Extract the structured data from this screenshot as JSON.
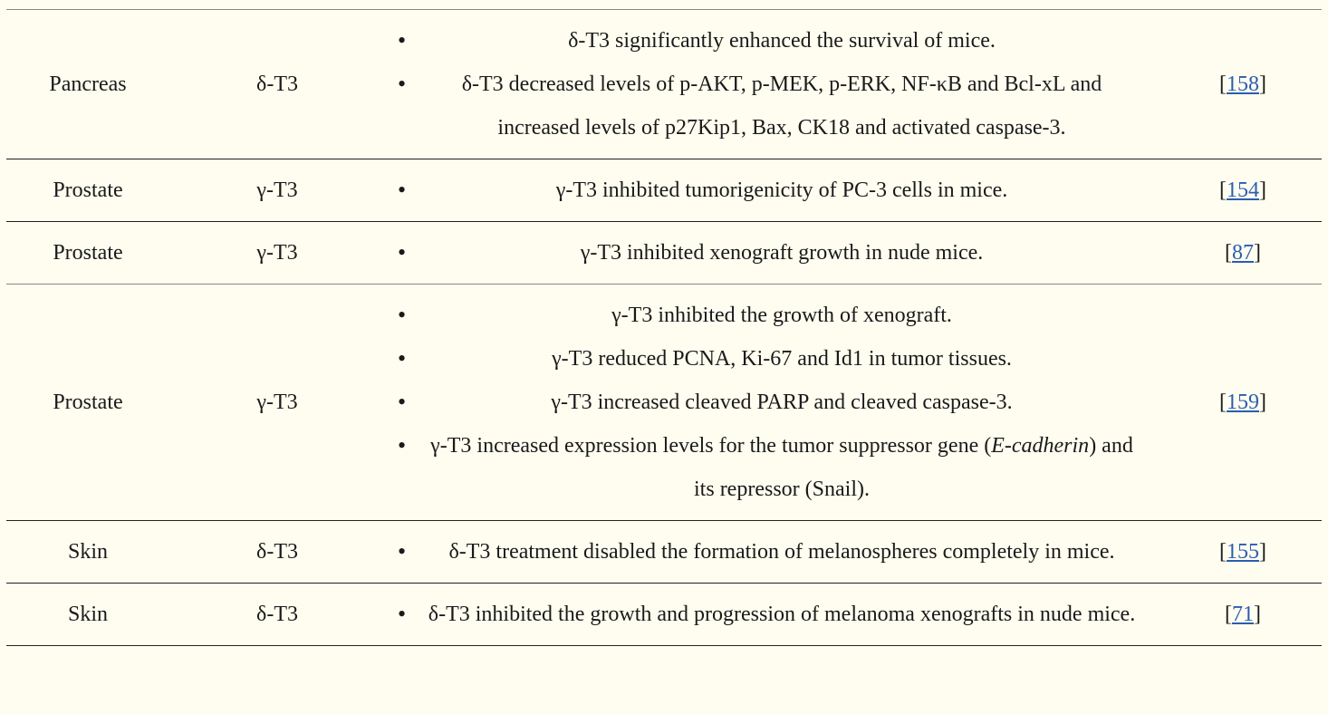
{
  "rows": [
    {
      "organ": "Pancreas",
      "form": "δ-T3",
      "findings": [
        "δ-T3 significantly enhanced the survival of mice.",
        "δ-T3 decreased levels of p-AKT, p-MEK, p-ERK, NF-κB and Bcl-xL and increased levels of p27Kip1, Bax, CK18 and activated caspase-3."
      ],
      "ref": "158"
    },
    {
      "organ": "Prostate",
      "form": "γ-T3",
      "findings": [
        "γ-T3 inhibited tumorigenicity of PC-3 cells in mice."
      ],
      "ref": "154"
    },
    {
      "organ": "Prostate",
      "form": "γ-T3",
      "findings": [
        "γ-T3 inhibited xenograft growth in nude mice."
      ],
      "ref": "87"
    },
    {
      "organ": "Prostate",
      "form": "γ-T3",
      "findings": [
        "γ-T3 inhibited the growth of xenograft.",
        "γ-T3 reduced PCNA, Ki-67 and Id1 in tumor tissues.",
        "γ-T3 increased cleaved PARP and cleaved caspase-3."
      ],
      "finding_last": {
        "before": "γ-T3 increased expression levels for the tumor suppressor gene (",
        "italic": "E-cadherin",
        "after": ") and its repressor (Snail)."
      },
      "ref": "159"
    },
    {
      "organ": "Skin",
      "form": "δ-T3",
      "findings": [
        "δ-T3 treatment disabled the formation of melanospheres completely in mice."
      ],
      "ref": "155"
    },
    {
      "organ": "Skin",
      "form": "δ-T3",
      "findings": [
        "δ-T3 inhibited the growth and progression of melanoma xenografts in nude mice."
      ],
      "ref": "71"
    }
  ],
  "ref_open": "[",
  "ref_close": "]"
}
